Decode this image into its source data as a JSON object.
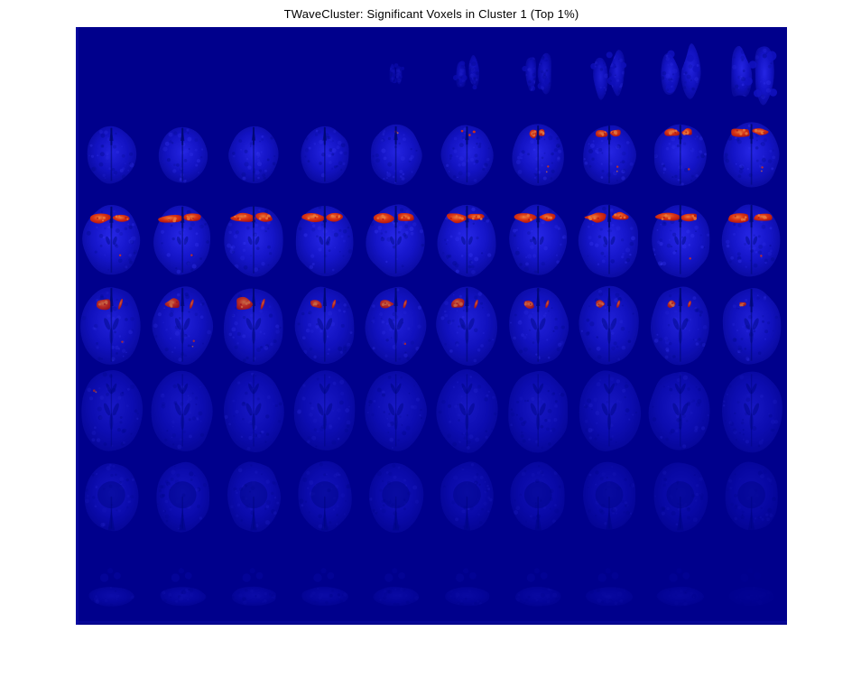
{
  "figure": {
    "title": "TWaveCluster: Significant Voxels in Cluster 1 (Top 1%)"
  },
  "palette": {
    "page_bg": "#ffffff",
    "axes_bg": "#00008c",
    "brain_bright": "#2b2bf0",
    "brain_mid": "#1717cd",
    "brain_dark": "#0b0b9d",
    "midline_dark": "#000a70",
    "texture_dark": "#000a85",
    "texture_light": "#4040ff",
    "red_core": "#ee3a0a",
    "red_hot": "#ff8432",
    "red_dark": "#bc1404",
    "title_color": "#000000"
  },
  "chart_data": {
    "type": "heatmap",
    "subtype": "brain-slice-montage",
    "title": "TWaveCluster: Significant Voxels in Cluster 1 (Top 1%)",
    "description": "Montage of axial fMRI brain slices (7 rows x 10 columns) on a dark navy background. Blue shows brain anatomy; red-orange marks the top 1% significant voxels, concentrated bilaterally in anterior/frontal cortex. Row 1: small vertex slices (cols 5-10 only). Row 2: superior slices, red caps growing toward right columns. Row 3: large bilateral frontal red caps on every slice. Row 4: smaller left-frontal red blobs with thin right streaks. Row 5: plain slices (tiny red speck col 1). Row 6: dim inferior slices. Row 7: very faint basal slices.",
    "rows": 7,
    "cols": 10,
    "colormap": "jet-like (navy background, blue tissue, red-orange activation)",
    "red_meaning": "significant voxels in cluster 1 (top 1%)",
    "slices": [
      {
        "r": 1,
        "c": 5,
        "shape": "apex",
        "s": 0.2,
        "b": 0.4,
        "red": null
      },
      {
        "r": 1,
        "c": 6,
        "shape": "apex",
        "s": 0.34,
        "b": 0.55,
        "red": null
      },
      {
        "r": 1,
        "c": 7,
        "shape": "apex",
        "s": 0.42,
        "b": 0.6,
        "red": null
      },
      {
        "r": 1,
        "c": 8,
        "shape": "apex",
        "s": 0.5,
        "b": 0.7,
        "red": null
      },
      {
        "r": 1,
        "c": 9,
        "shape": "apex",
        "s": 0.58,
        "b": 0.8,
        "red": null
      },
      {
        "r": 1,
        "c": 10,
        "shape": "apex",
        "s": 0.64,
        "b": 0.88,
        "red": null
      },
      {
        "r": 2,
        "c": 1,
        "shape": "sup",
        "s": 0.7,
        "b": 0.82,
        "red": null
      },
      {
        "r": 2,
        "c": 2,
        "shape": "sup",
        "s": 0.7,
        "b": 0.85,
        "red": null
      },
      {
        "r": 2,
        "c": 3,
        "shape": "sup",
        "s": 0.72,
        "b": 0.85,
        "red": null
      },
      {
        "r": 2,
        "c": 4,
        "shape": "sup",
        "s": 0.72,
        "b": 0.85,
        "red": null
      },
      {
        "r": 2,
        "c": 5,
        "shape": "sup",
        "s": 0.74,
        "b": 0.85,
        "red": {
          "t": "speck",
          "z": 0.2
        }
      },
      {
        "r": 2,
        "c": 6,
        "shape": "sup",
        "s": 0.74,
        "b": 0.85,
        "red": {
          "t": "dots",
          "z": 0.3
        }
      },
      {
        "r": 2,
        "c": 7,
        "shape": "sup",
        "s": 0.76,
        "b": 0.88,
        "red": {
          "t": "cap",
          "z": 0.35,
          "x": "bdot"
        }
      },
      {
        "r": 2,
        "c": 8,
        "shape": "sup",
        "s": 0.76,
        "b": 0.88,
        "red": {
          "t": "cap",
          "z": 0.6,
          "x": "bdot"
        }
      },
      {
        "r": 2,
        "c": 9,
        "shape": "sup",
        "s": 0.78,
        "b": 0.9,
        "red": {
          "t": "cap",
          "z": 0.65,
          "x": "bdot"
        }
      },
      {
        "r": 2,
        "c": 10,
        "shape": "sup",
        "s": 0.8,
        "b": 0.9,
        "red": {
          "t": "cap",
          "z": 0.85,
          "x": "bdot"
        }
      },
      {
        "r": 3,
        "c": 1,
        "shape": "mid",
        "s": 0.82,
        "b": 0.92,
        "red": {
          "t": "cap",
          "z": 1.0,
          "x": "bdot"
        }
      },
      {
        "r": 3,
        "c": 2,
        "shape": "mid",
        "s": 0.82,
        "b": 0.92,
        "red": {
          "t": "cap",
          "z": 0.95,
          "x": "bdot"
        }
      },
      {
        "r": 3,
        "c": 3,
        "shape": "mid",
        "s": 0.84,
        "b": 0.92,
        "red": {
          "t": "cap",
          "z": 1.0
        }
      },
      {
        "r": 3,
        "c": 4,
        "shape": "mid",
        "s": 0.84,
        "b": 0.92,
        "red": {
          "t": "cap",
          "z": 0.9
        }
      },
      {
        "r": 3,
        "c": 5,
        "shape": "mid",
        "s": 0.84,
        "b": 0.92,
        "red": {
          "t": "cap",
          "z": 0.9
        }
      },
      {
        "r": 3,
        "c": 6,
        "shape": "mid",
        "s": 0.84,
        "b": 0.92,
        "red": {
          "t": "cap",
          "z": 0.85
        }
      },
      {
        "r": 3,
        "c": 7,
        "shape": "mid",
        "s": 0.84,
        "b": 0.92,
        "red": {
          "t": "cap",
          "z": 0.9
        }
      },
      {
        "r": 3,
        "c": 8,
        "shape": "mid",
        "s": 0.86,
        "b": 0.92,
        "red": {
          "t": "cap",
          "z": 0.95
        }
      },
      {
        "r": 3,
        "c": 9,
        "shape": "mid",
        "s": 0.86,
        "b": 0.92,
        "red": {
          "t": "cap",
          "z": 0.9,
          "x": "bdot"
        }
      },
      {
        "r": 3,
        "c": 10,
        "shape": "mid",
        "s": 0.86,
        "b": 0.92,
        "red": {
          "t": "cap",
          "z": 1.0,
          "x": "bdot"
        }
      },
      {
        "r": 4,
        "c": 1,
        "shape": "mid2",
        "s": 0.86,
        "b": 0.78,
        "red": {
          "t": "lstreak",
          "z": 0.95,
          "x": "bdot"
        }
      },
      {
        "r": 4,
        "c": 2,
        "shape": "mid2",
        "s": 0.86,
        "b": 0.78,
        "red": {
          "t": "lstreak",
          "z": 0.8,
          "x": "bdot"
        }
      },
      {
        "r": 4,
        "c": 3,
        "shape": "mid2",
        "s": 0.86,
        "b": 0.78,
        "red": {
          "t": "lstreak",
          "z": 0.95
        }
      },
      {
        "r": 4,
        "c": 4,
        "shape": "mid2",
        "s": 0.86,
        "b": 0.78,
        "red": {
          "t": "lstreak",
          "z": 0.7
        }
      },
      {
        "r": 4,
        "c": 5,
        "shape": "mid2",
        "s": 0.86,
        "b": 0.78,
        "red": {
          "t": "lstreak",
          "z": 0.65,
          "x": "bdot"
        }
      },
      {
        "r": 4,
        "c": 6,
        "shape": "mid2",
        "s": 0.86,
        "b": 0.78,
        "red": {
          "t": "lstreak",
          "z": 0.7
        }
      },
      {
        "r": 4,
        "c": 7,
        "shape": "mid2",
        "s": 0.86,
        "b": 0.78,
        "red": {
          "t": "lstreak",
          "z": 0.6
        }
      },
      {
        "r": 4,
        "c": 8,
        "shape": "mid2",
        "s": 0.86,
        "b": 0.78,
        "red": {
          "t": "lstreak",
          "z": 0.55
        }
      },
      {
        "r": 4,
        "c": 9,
        "shape": "mid2",
        "s": 0.86,
        "b": 0.78,
        "red": {
          "t": "lstreak",
          "z": 0.4
        }
      },
      {
        "r": 4,
        "c": 10,
        "shape": "mid2",
        "s": 0.84,
        "b": 0.78,
        "red": {
          "t": "left",
          "z": 0.25
        }
      },
      {
        "r": 5,
        "c": 1,
        "shape": "round",
        "s": 0.88,
        "b": 0.58,
        "red": {
          "t": "speck",
          "z": 0.2,
          "p": "tl"
        }
      },
      {
        "r": 5,
        "c": 2,
        "shape": "round",
        "s": 0.88,
        "b": 0.58,
        "red": null
      },
      {
        "r": 5,
        "c": 3,
        "shape": "round",
        "s": 0.88,
        "b": 0.58,
        "red": null
      },
      {
        "r": 5,
        "c": 4,
        "shape": "round",
        "s": 0.88,
        "b": 0.58,
        "red": null
      },
      {
        "r": 5,
        "c": 5,
        "shape": "round",
        "s": 0.88,
        "b": 0.58,
        "red": null
      },
      {
        "r": 5,
        "c": 6,
        "shape": "round",
        "s": 0.88,
        "b": 0.56,
        "red": null
      },
      {
        "r": 5,
        "c": 7,
        "shape": "round",
        "s": 0.88,
        "b": 0.56,
        "red": null
      },
      {
        "r": 5,
        "c": 8,
        "shape": "round",
        "s": 0.88,
        "b": 0.55,
        "red": null
      },
      {
        "r": 5,
        "c": 9,
        "shape": "round",
        "s": 0.88,
        "b": 0.55,
        "red": null
      },
      {
        "r": 5,
        "c": 10,
        "shape": "round",
        "s": 0.88,
        "b": 0.55,
        "red": null
      },
      {
        "r": 6,
        "c": 1,
        "shape": "low",
        "s": 0.78,
        "b": 0.52,
        "red": null
      },
      {
        "r": 6,
        "c": 2,
        "shape": "low",
        "s": 0.78,
        "b": 0.52,
        "red": null
      },
      {
        "r": 6,
        "c": 3,
        "shape": "low",
        "s": 0.78,
        "b": 0.5,
        "red": null
      },
      {
        "r": 6,
        "c": 4,
        "shape": "low",
        "s": 0.78,
        "b": 0.48,
        "red": null
      },
      {
        "r": 6,
        "c": 5,
        "shape": "low",
        "s": 0.78,
        "b": 0.46,
        "red": null
      },
      {
        "r": 6,
        "c": 6,
        "shape": "low",
        "s": 0.78,
        "b": 0.44,
        "red": null
      },
      {
        "r": 6,
        "c": 7,
        "shape": "low",
        "s": 0.78,
        "b": 0.42,
        "red": null
      },
      {
        "r": 6,
        "c": 8,
        "shape": "low",
        "s": 0.78,
        "b": 0.4,
        "red": null
      },
      {
        "r": 6,
        "c": 9,
        "shape": "low",
        "s": 0.78,
        "b": 0.38,
        "red": null
      },
      {
        "r": 6,
        "c": 10,
        "shape": "low",
        "s": 0.78,
        "b": 0.36,
        "red": null
      },
      {
        "r": 7,
        "c": 1,
        "shape": "base",
        "s": 0.66,
        "b": 0.3,
        "red": null
      },
      {
        "r": 7,
        "c": 2,
        "shape": "base",
        "s": 0.66,
        "b": 0.3,
        "red": null
      },
      {
        "r": 7,
        "c": 3,
        "shape": "base",
        "s": 0.66,
        "b": 0.28,
        "red": null
      },
      {
        "r": 7,
        "c": 4,
        "shape": "base",
        "s": 0.66,
        "b": 0.26,
        "red": null
      },
      {
        "r": 7,
        "c": 5,
        "shape": "base",
        "s": 0.66,
        "b": 0.24,
        "red": null
      },
      {
        "r": 7,
        "c": 6,
        "shape": "base",
        "s": 0.66,
        "b": 0.22,
        "red": null
      },
      {
        "r": 7,
        "c": 7,
        "shape": "base",
        "s": 0.66,
        "b": 0.22,
        "red": null
      },
      {
        "r": 7,
        "c": 8,
        "shape": "base",
        "s": 0.66,
        "b": 0.2,
        "red": null
      },
      {
        "r": 7,
        "c": 9,
        "shape": "base",
        "s": 0.66,
        "b": 0.18,
        "red": null
      },
      {
        "r": 7,
        "c": 10,
        "shape": "base",
        "s": 0.66,
        "b": 0.07,
        "red": null
      }
    ]
  }
}
